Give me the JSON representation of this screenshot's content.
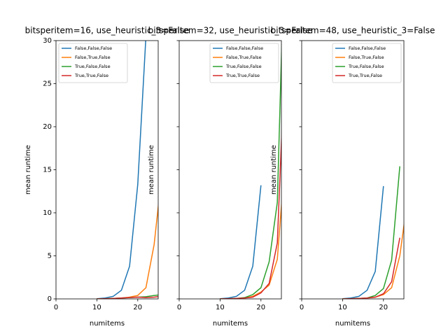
{
  "chart_data": [
    {
      "type": "line",
      "title": "bitsperitem=16, use_heuristic_3=False",
      "xlabel": "numitems",
      "ylabel": "mean runtime",
      "x": [
        10,
        12,
        14,
        16,
        18,
        20,
        22,
        24,
        26
      ],
      "xlim": [
        0,
        25
      ],
      "ylim": [
        0,
        30
      ],
      "xticks": [
        0,
        10,
        20
      ],
      "yticks": [
        0,
        5,
        10,
        15,
        20,
        25,
        30
      ],
      "legend": "upper left",
      "series": [
        {
          "name": "False,False,False",
          "color": "#1f77b4",
          "values": [
            0.02,
            0.1,
            0.3,
            1.0,
            3.8,
            13.3,
            30.5,
            null,
            null
          ]
        },
        {
          "name": "False,True,False",
          "color": "#ff7f0e",
          "values": [
            0.0,
            0.02,
            0.05,
            0.1,
            0.2,
            0.4,
            1.3,
            6.3,
            15
          ]
        },
        {
          "name": "True,False,False",
          "color": "#2ca02c",
          "values": [
            0.0,
            0.02,
            0.05,
            0.1,
            0.15,
            0.2,
            0.25,
            0.4,
            0.5
          ]
        },
        {
          "name": "True,True,False",
          "color": "#d62728",
          "values": [
            0.0,
            0.02,
            0.05,
            0.1,
            0.15,
            0.2,
            0.15,
            0.2,
            0.3
          ]
        }
      ]
    },
    {
      "type": "line",
      "title": "bitsperitem=32, use_heuristic_3=False",
      "xlabel": "numitems",
      "ylabel": "mean runtime",
      "x": [
        10,
        12,
        14,
        16,
        18,
        20,
        22,
        24,
        26
      ],
      "xlim": [
        0,
        25
      ],
      "ylim": [
        0,
        30
      ],
      "xticks": [
        0,
        10,
        20
      ],
      "legend": "upper right",
      "series": [
        {
          "name": "False,False,False",
          "color": "#1f77b4",
          "values": [
            0.02,
            0.1,
            0.3,
            1.0,
            3.8,
            13.2,
            null,
            null,
            null
          ]
        },
        {
          "name": "False,True,False",
          "color": "#ff7f0e",
          "values": [
            0.0,
            0.02,
            0.05,
            0.1,
            0.3,
            0.8,
            1.6,
            4.6,
            17
          ]
        },
        {
          "name": "True,False,False",
          "color": "#2ca02c",
          "values": [
            0.0,
            0.02,
            0.05,
            0.15,
            0.5,
            1.3,
            4.3,
            11.2,
            45
          ]
        },
        {
          "name": "True,True,False",
          "color": "#d62728",
          "values": [
            0.0,
            0.02,
            0.05,
            0.1,
            0.2,
            0.7,
            1.8,
            6.5,
            30
          ]
        }
      ]
    },
    {
      "type": "line",
      "title": "bitsperitem=48, use_heuristic_3=False",
      "xlabel": "numitems",
      "ylabel": "mean runtime",
      "x": [
        10,
        12,
        14,
        16,
        18,
        20,
        22,
        24,
        26
      ],
      "xlim": [
        0,
        25
      ],
      "ylim": [
        0,
        30
      ],
      "xticks": [
        0,
        10,
        20
      ],
      "legend": "upper right",
      "series": [
        {
          "name": "False,False,False",
          "color": "#1f77b4",
          "values": [
            0.02,
            0.1,
            0.3,
            1.0,
            3.2,
            13.1,
            null,
            null,
            null
          ]
        },
        {
          "name": "False,True,False",
          "color": "#ff7f0e",
          "values": [
            0.0,
            0.02,
            0.05,
            0.1,
            0.2,
            0.5,
            1.3,
            5.0,
            12
          ]
        },
        {
          "name": "True,False,False",
          "color": "#2ca02c",
          "values": [
            0.0,
            0.02,
            0.05,
            0.1,
            0.4,
            1.2,
            4.5,
            15.4,
            null
          ]
        },
        {
          "name": "True,True,False",
          "color": "#d62728",
          "values": [
            0.0,
            0.02,
            0.05,
            0.1,
            0.2,
            0.6,
            2.0,
            7.1,
            null
          ]
        }
      ]
    }
  ]
}
